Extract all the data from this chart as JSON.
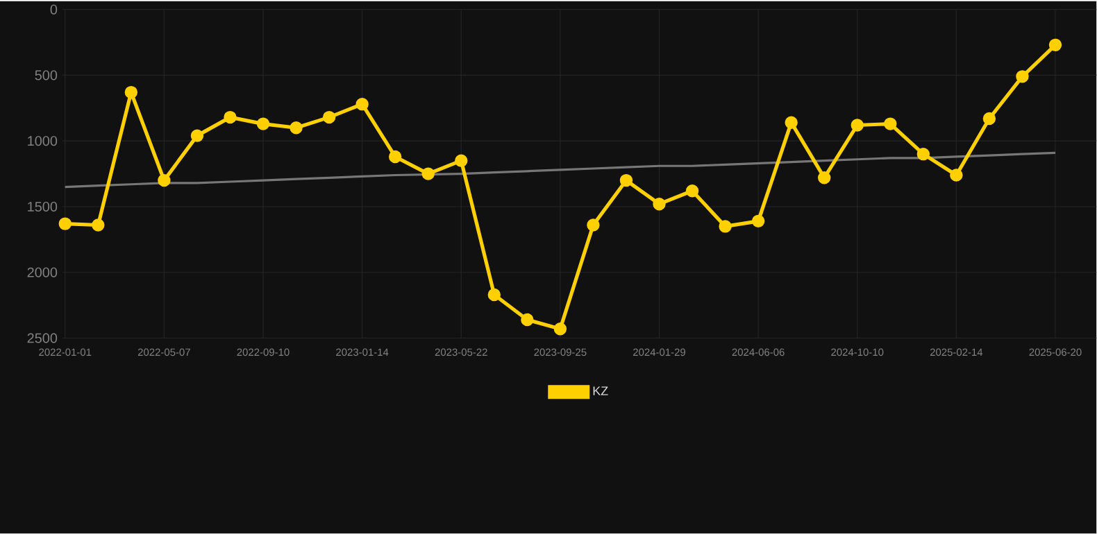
{
  "chart_data": {
    "type": "line",
    "categories": [
      "2022-01-01",
      null,
      null,
      "2022-05-07",
      null,
      null,
      "2022-09-10",
      null,
      null,
      "2023-01-14",
      null,
      null,
      "2023-05-22",
      null,
      null,
      "2023-09-25",
      null,
      null,
      "2024-01-29",
      null,
      null,
      "2024-06-06",
      null,
      null,
      "2024-10-10",
      null,
      null,
      "2025-02-14",
      null,
      null,
      "2025-06-20"
    ],
    "series": [
      {
        "name": "KZ",
        "color": "#ffd000",
        "marker": "circle",
        "values": [
          1630,
          1640,
          630,
          1300,
          960,
          820,
          870,
          900,
          820,
          720,
          1120,
          1250,
          1150,
          2170,
          2360,
          2430,
          1640,
          1300,
          1480,
          1380,
          1650,
          1610,
          860,
          1280,
          880,
          870,
          1100,
          1260,
          830,
          510,
          270
        ]
      },
      {
        "type": "line",
        "color": "#777777",
        "marker": "none",
        "values": [
          1350,
          1340,
          1330,
          1320,
          1320,
          1310,
          1300,
          1290,
          1280,
          1270,
          1260,
          null,
          1250,
          1240,
          1230,
          1220,
          1210,
          1200,
          1190,
          1190,
          1180,
          1170,
          1160,
          1150,
          1140,
          1130,
          1130,
          1120,
          1110,
          1100,
          1090
        ]
      }
    ],
    "ylim": [
      2500,
      0
    ],
    "yticks": [
      0,
      500,
      1000,
      1500,
      2000,
      2500
    ],
    "grid": true,
    "legend": "bottom",
    "line_style": "solid"
  }
}
